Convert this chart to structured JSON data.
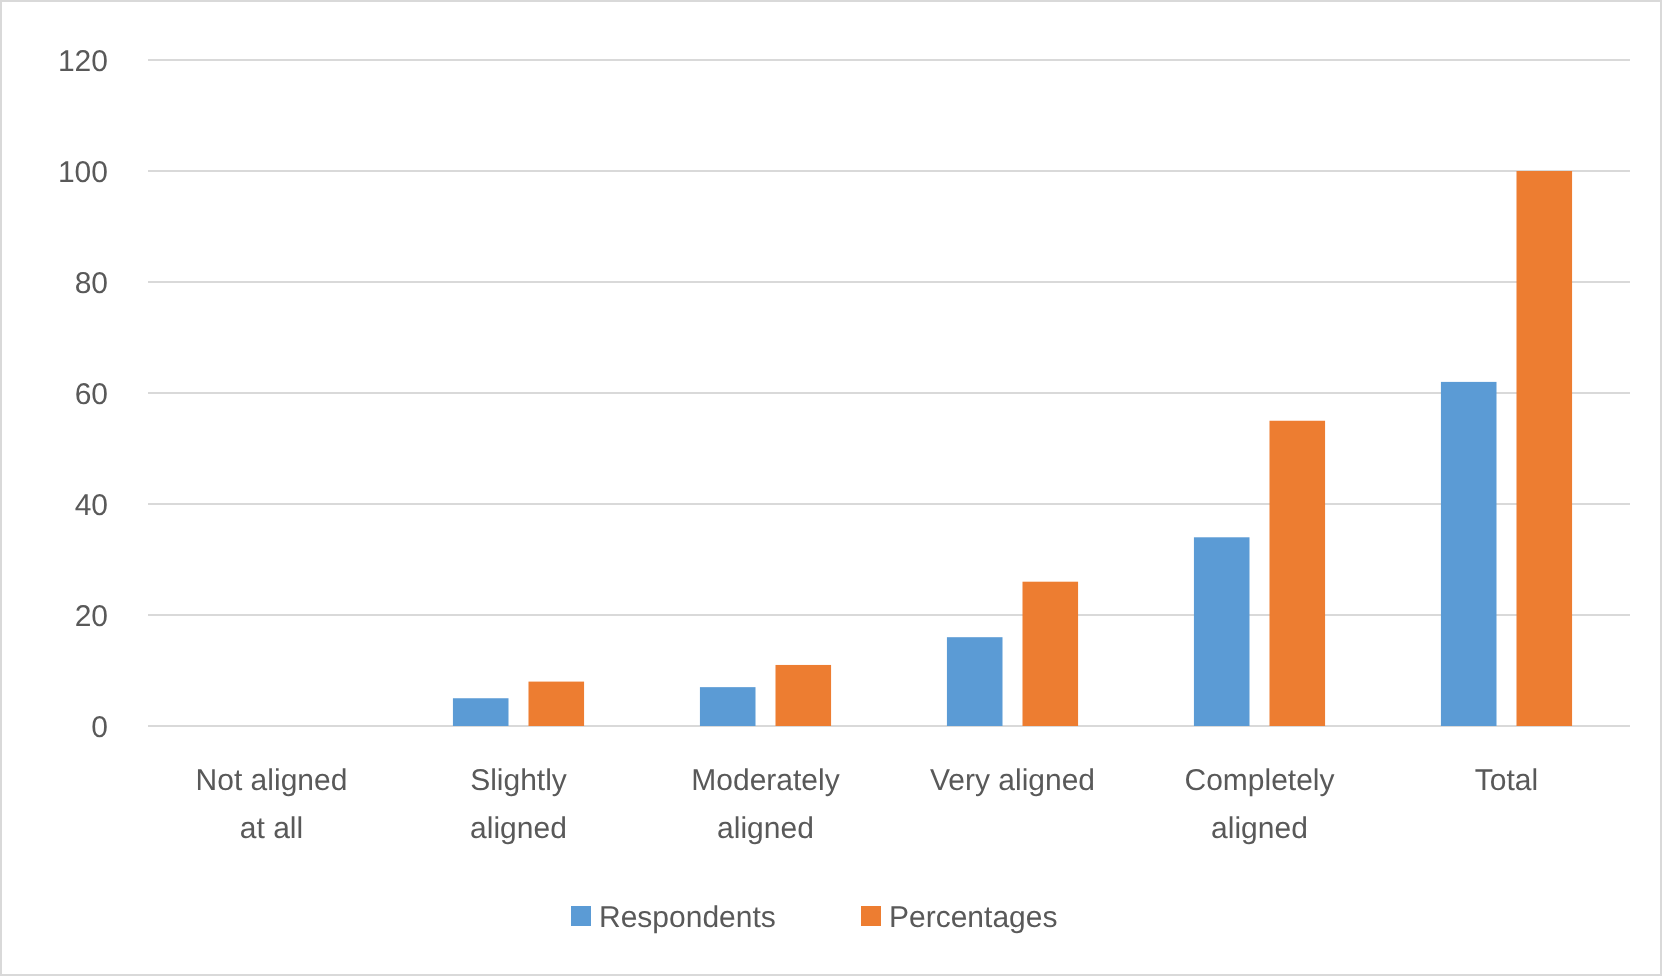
{
  "chart_data": {
    "type": "bar",
    "categories": [
      "Not aligned at all",
      "Slightly aligned",
      "Moderately aligned",
      "Very aligned",
      "Completely aligned",
      "Total"
    ],
    "series": [
      {
        "name": "Respondents",
        "color": "#5b9bd5",
        "values": [
          0,
          5,
          7,
          16,
          34,
          62
        ]
      },
      {
        "name": "Percentages",
        "color": "#ed7d31",
        "values": [
          0,
          8,
          11,
          26,
          55,
          100
        ]
      }
    ],
    "ylim": [
      0,
      120
    ],
    "yticks": [
      0,
      20,
      40,
      60,
      80,
      100,
      120
    ],
    "grid": "y",
    "legend": "bottom"
  }
}
